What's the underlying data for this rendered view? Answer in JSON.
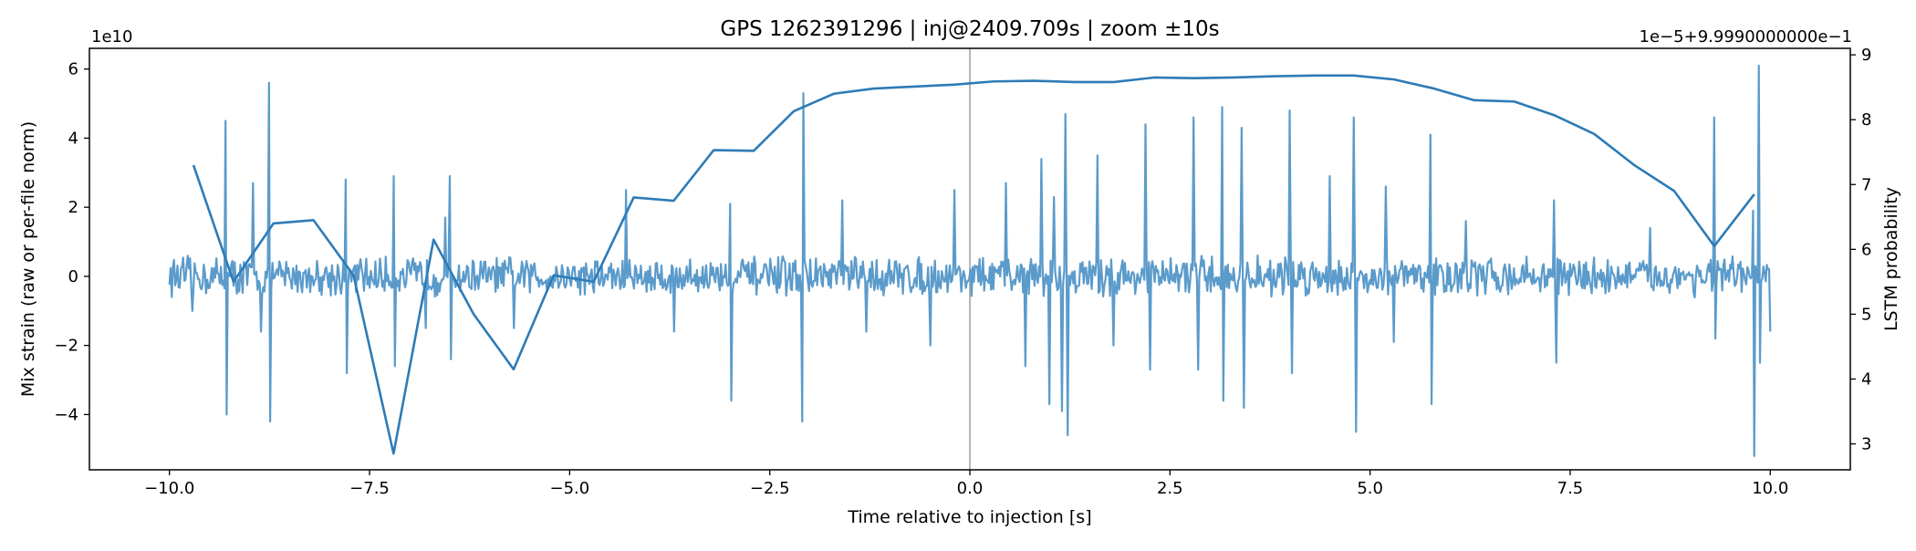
{
  "chart_data": {
    "type": "line",
    "title": "GPS 1262391296 | inj@2409.709s | zoom ±10s",
    "xlabel": "Time relative to injection [s]",
    "ylabel_left": "Mix strain (raw or per-file norm)",
    "ylabel_right": "LSTM probability",
    "left_offset_text": "1e10",
    "right_offset_text": "1e−5+9.9990000000e−1",
    "xlim": [
      -11.0,
      11.0
    ],
    "ylim_left": [
      -5.6,
      6.6
    ],
    "ylim_right": [
      2.6,
      9.1
    ],
    "x_ticks": [
      -10.0,
      -7.5,
      -5.0,
      -2.5,
      0.0,
      2.5,
      5.0,
      7.5,
      10.0
    ],
    "x_tick_labels": [
      "−10.0",
      "−7.5",
      "−5.0",
      "−2.5",
      "0.0",
      "2.5",
      "5.0",
      "7.5",
      "10.0"
    ],
    "y_left_ticks": [
      -4,
      -2,
      0,
      2,
      4,
      6
    ],
    "y_left_tick_labels": [
      "−4",
      "−2",
      "0",
      "2",
      "4",
      "6"
    ],
    "y_right_ticks": [
      3,
      4,
      5,
      6,
      7,
      8,
      9
    ],
    "y_right_tick_labels": [
      "3",
      "4",
      "5",
      "6",
      "7",
      "8",
      "9"
    ],
    "vline_x": 0.0,
    "series": [
      {
        "name": "Mix strain",
        "axis": "left",
        "color": "#5b9bcb",
        "noise_amplitude": 0.45,
        "x_start": -10.0,
        "x_end": 10.0,
        "n_points": 1400,
        "spikes": [
          {
            "x": -9.72,
            "y": -1.0
          },
          {
            "x": -9.3,
            "y": 4.5
          },
          {
            "x": -9.28,
            "y": -4.0
          },
          {
            "x": -8.95,
            "y": 2.7
          },
          {
            "x": -8.85,
            "y": -1.6
          },
          {
            "x": -8.75,
            "y": 5.6
          },
          {
            "x": -8.74,
            "y": -4.2
          },
          {
            "x": -7.8,
            "y": 2.8
          },
          {
            "x": -7.78,
            "y": -2.8
          },
          {
            "x": -7.2,
            "y": 2.9
          },
          {
            "x": -7.18,
            "y": -2.6
          },
          {
            "x": -6.8,
            "y": -1.5
          },
          {
            "x": -6.5,
            "y": 2.9
          },
          {
            "x": -6.48,
            "y": -2.4
          },
          {
            "x": -6.55,
            "y": 1.7
          },
          {
            "x": -5.7,
            "y": -1.5
          },
          {
            "x": -4.3,
            "y": 2.5
          },
          {
            "x": -3.7,
            "y": -1.6
          },
          {
            "x": -3.0,
            "y": 2.1
          },
          {
            "x": -2.98,
            "y": -3.6
          },
          {
            "x": -2.1,
            "y": -4.2
          },
          {
            "x": -2.08,
            "y": 5.3
          },
          {
            "x": -1.6,
            "y": 2.2
          },
          {
            "x": -1.3,
            "y": -1.6
          },
          {
            "x": -0.5,
            "y": -2.0
          },
          {
            "x": -0.2,
            "y": 2.5
          },
          {
            "x": 0.45,
            "y": 2.7
          },
          {
            "x": 0.7,
            "y": -2.6
          },
          {
            "x": 0.9,
            "y": 3.4
          },
          {
            "x": 1.0,
            "y": -3.7
          },
          {
            "x": 1.05,
            "y": 2.3
          },
          {
            "x": 1.15,
            "y": -3.9
          },
          {
            "x": 1.2,
            "y": 4.7
          },
          {
            "x": 1.22,
            "y": -4.6
          },
          {
            "x": 1.6,
            "y": 3.5
          },
          {
            "x": 1.8,
            "y": -2.0
          },
          {
            "x": 2.2,
            "y": 4.4
          },
          {
            "x": 2.25,
            "y": -2.7
          },
          {
            "x": 2.8,
            "y": 4.6
          },
          {
            "x": 2.85,
            "y": -2.7
          },
          {
            "x": 3.15,
            "y": 4.9
          },
          {
            "x": 3.17,
            "y": -3.6
          },
          {
            "x": 3.4,
            "y": 4.3
          },
          {
            "x": 3.42,
            "y": -3.8
          },
          {
            "x": 4.0,
            "y": 4.8
          },
          {
            "x": 4.02,
            "y": -2.8
          },
          {
            "x": 4.5,
            "y": 2.9
          },
          {
            "x": 4.8,
            "y": 4.6
          },
          {
            "x": 4.82,
            "y": -4.5
          },
          {
            "x": 5.2,
            "y": 2.6
          },
          {
            "x": 5.3,
            "y": -1.9
          },
          {
            "x": 5.75,
            "y": 4.1
          },
          {
            "x": 5.77,
            "y": -3.7
          },
          {
            "x": 6.2,
            "y": 1.6
          },
          {
            "x": 7.3,
            "y": 2.2
          },
          {
            "x": 7.32,
            "y": -2.5
          },
          {
            "x": 8.5,
            "y": 1.4
          },
          {
            "x": 9.3,
            "y": 4.6
          },
          {
            "x": 9.32,
            "y": -1.8
          },
          {
            "x": 9.78,
            "y": 1.9
          },
          {
            "x": 9.8,
            "y": -5.2
          },
          {
            "x": 9.85,
            "y": 6.1
          },
          {
            "x": 9.87,
            "y": -2.5
          },
          {
            "x": 10.0,
            "y": -1.6
          }
        ]
      },
      {
        "name": "LSTM probability",
        "axis": "right",
        "color": "#2e7bb6",
        "x": [
          -9.7,
          -9.2,
          -8.7,
          -8.2,
          -7.7,
          -7.2,
          -6.7,
          -6.2,
          -5.7,
          -5.2,
          -4.7,
          -4.2,
          -3.7,
          -3.2,
          -2.7,
          -2.2,
          -1.7,
          -1.2,
          -0.7,
          -0.2,
          0.3,
          0.8,
          1.3,
          1.8,
          2.3,
          2.8,
          3.3,
          3.8,
          4.3,
          4.8,
          5.3,
          5.8,
          6.3,
          6.8,
          7.3,
          7.8,
          8.3,
          8.8,
          9.3,
          9.8
        ],
        "values": [
          7.3,
          5.5,
          6.4,
          6.45,
          5.6,
          2.85,
          6.15,
          5.0,
          4.15,
          5.6,
          5.5,
          6.8,
          6.75,
          7.53,
          7.52,
          8.13,
          8.4,
          8.48,
          8.51,
          8.54,
          8.59,
          8.6,
          8.58,
          8.58,
          8.65,
          8.64,
          8.65,
          8.67,
          8.68,
          8.68,
          8.62,
          8.48,
          8.3,
          8.28,
          8.07,
          7.78,
          7.3,
          6.9,
          6.05,
          6.85
        ]
      }
    ]
  }
}
